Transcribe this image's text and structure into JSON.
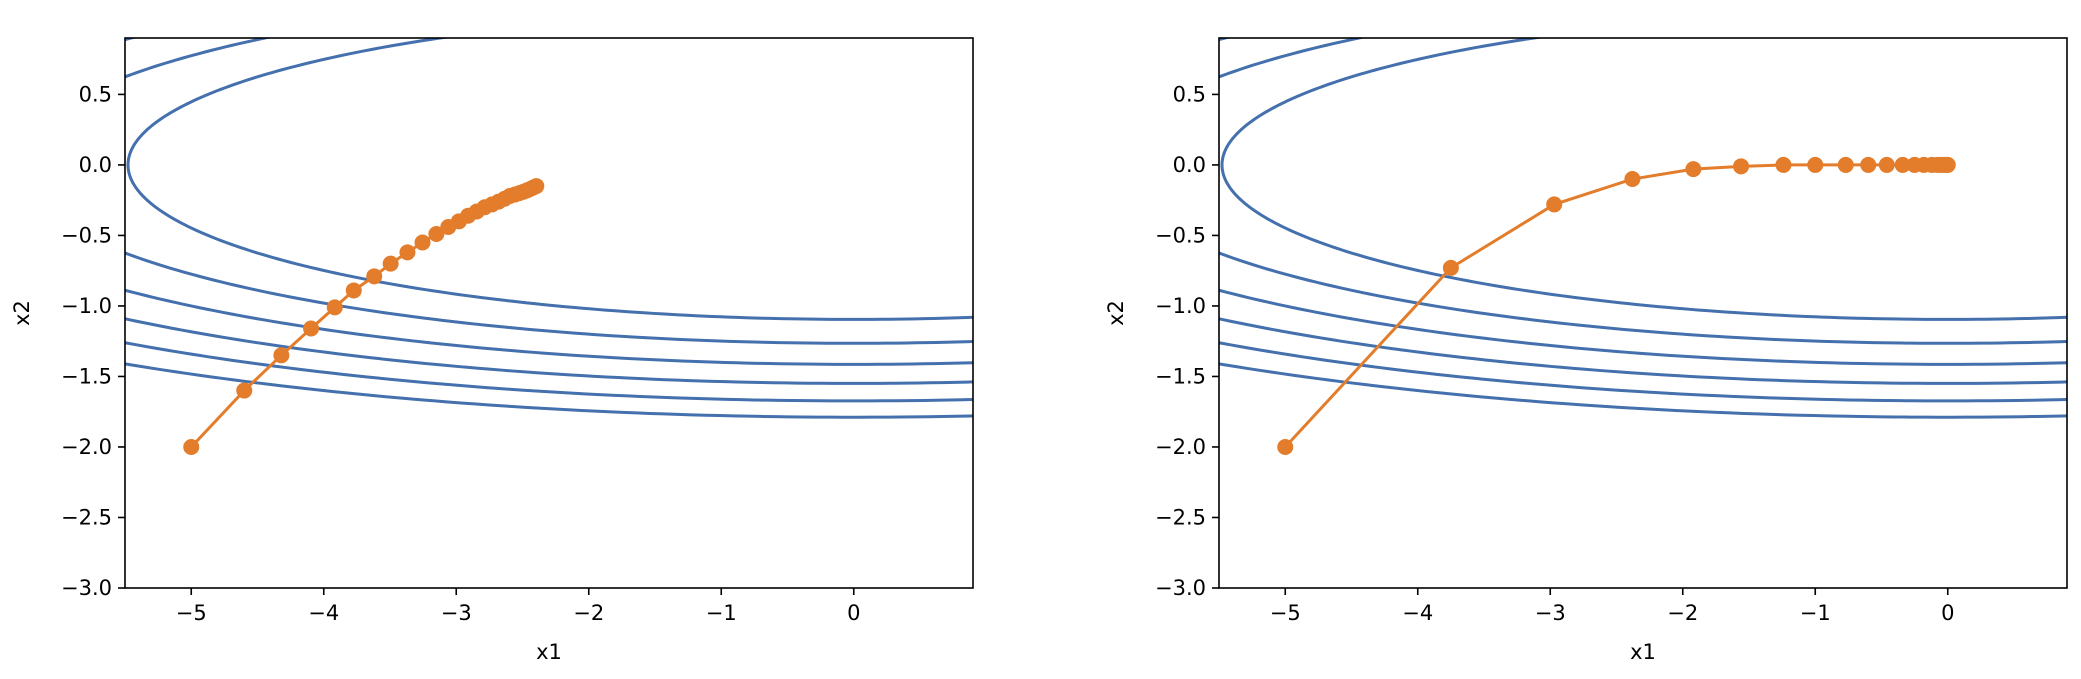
{
  "colors": {
    "contour": "#4470ad",
    "trajectory": "#e37d2b",
    "axis": "#000000"
  },
  "chart_data": [
    {
      "type": "line",
      "title": "",
      "xlabel": "x1",
      "ylabel": "x2",
      "xlim": [
        -5.5,
        0.9
      ],
      "ylim": [
        -3.0,
        0.9
      ],
      "xticks": [
        -5,
        -4,
        -3,
        -2,
        -1,
        0
      ],
      "yticks": [
        -3.0,
        -2.5,
        -2.0,
        -1.5,
        -1.0,
        -0.5,
        0.0,
        0.5
      ],
      "xtick_labels": [
        "−5",
        "−4",
        "−3",
        "−2",
        "−1",
        "0"
      ],
      "ytick_labels": [
        "−3.0",
        "−2.5",
        "−2.0",
        "−1.5",
        "−1.0",
        "−0.5",
        "0.0",
        "0.5"
      ],
      "contour_levels": [
        15,
        20,
        25,
        30,
        35,
        40
      ],
      "trajectory": {
        "x": [
          -5.0,
          -4.6,
          -4.32,
          -4.096,
          -3.9168,
          -3.7734,
          -3.6188,
          -3.495,
          -3.3682,
          -3.2546,
          -3.15,
          -3.06,
          -2.98,
          -2.91,
          -2.845,
          -2.785,
          -2.73,
          -2.68,
          -2.635,
          -2.595,
          -2.558,
          -2.524,
          -2.493,
          -2.465,
          -2.44,
          -2.418,
          -2.396
        ],
        "y": [
          -2.0,
          -1.6,
          -1.35,
          -1.16,
          -1.01,
          -0.89,
          -0.79,
          -0.7,
          -0.62,
          -0.55,
          -0.49,
          -0.44,
          -0.4,
          -0.36,
          -0.33,
          -0.3,
          -0.28,
          -0.26,
          -0.24,
          -0.22,
          -0.21,
          -0.2,
          -0.19,
          -0.18,
          -0.17,
          -0.16,
          -0.15
        ]
      }
    },
    {
      "type": "line",
      "title": "",
      "xlabel": "x1",
      "ylabel": "x2",
      "xlim": [
        -5.5,
        0.9
      ],
      "ylim": [
        -3.0,
        0.9
      ],
      "xticks": [
        -5,
        -4,
        -3,
        -2,
        -1,
        0
      ],
      "yticks": [
        -3.0,
        -2.5,
        -2.0,
        -1.5,
        -1.0,
        -0.5,
        0.0,
        0.5
      ],
      "xtick_labels": [
        "−5",
        "−4",
        "−3",
        "−2",
        "−1",
        "0"
      ],
      "ytick_labels": [
        "−3.0",
        "−2.5",
        "−2.0",
        "−1.5",
        "−1.0",
        "−0.5",
        "0.0",
        "0.5"
      ],
      "contour_levels": [
        15,
        20,
        25,
        30,
        35,
        40
      ],
      "trajectory": {
        "x": [
          -5.0,
          -3.75,
          -2.97,
          -2.38,
          -1.92,
          -1.56,
          -1.24,
          -1.0,
          -0.77,
          -0.6,
          -0.46,
          -0.34,
          -0.25,
          -0.18,
          -0.12,
          -0.08,
          -0.05,
          -0.03,
          -0.01,
          0.0
        ],
        "y": [
          -2.0,
          -0.73,
          -0.28,
          -0.1,
          -0.03,
          -0.01,
          0.0,
          0.0,
          0.0,
          0.0,
          0.0,
          0.0,
          0.0,
          0.0,
          0.0,
          0.0,
          0.0,
          0.0,
          0.0,
          0.0
        ]
      }
    }
  ]
}
